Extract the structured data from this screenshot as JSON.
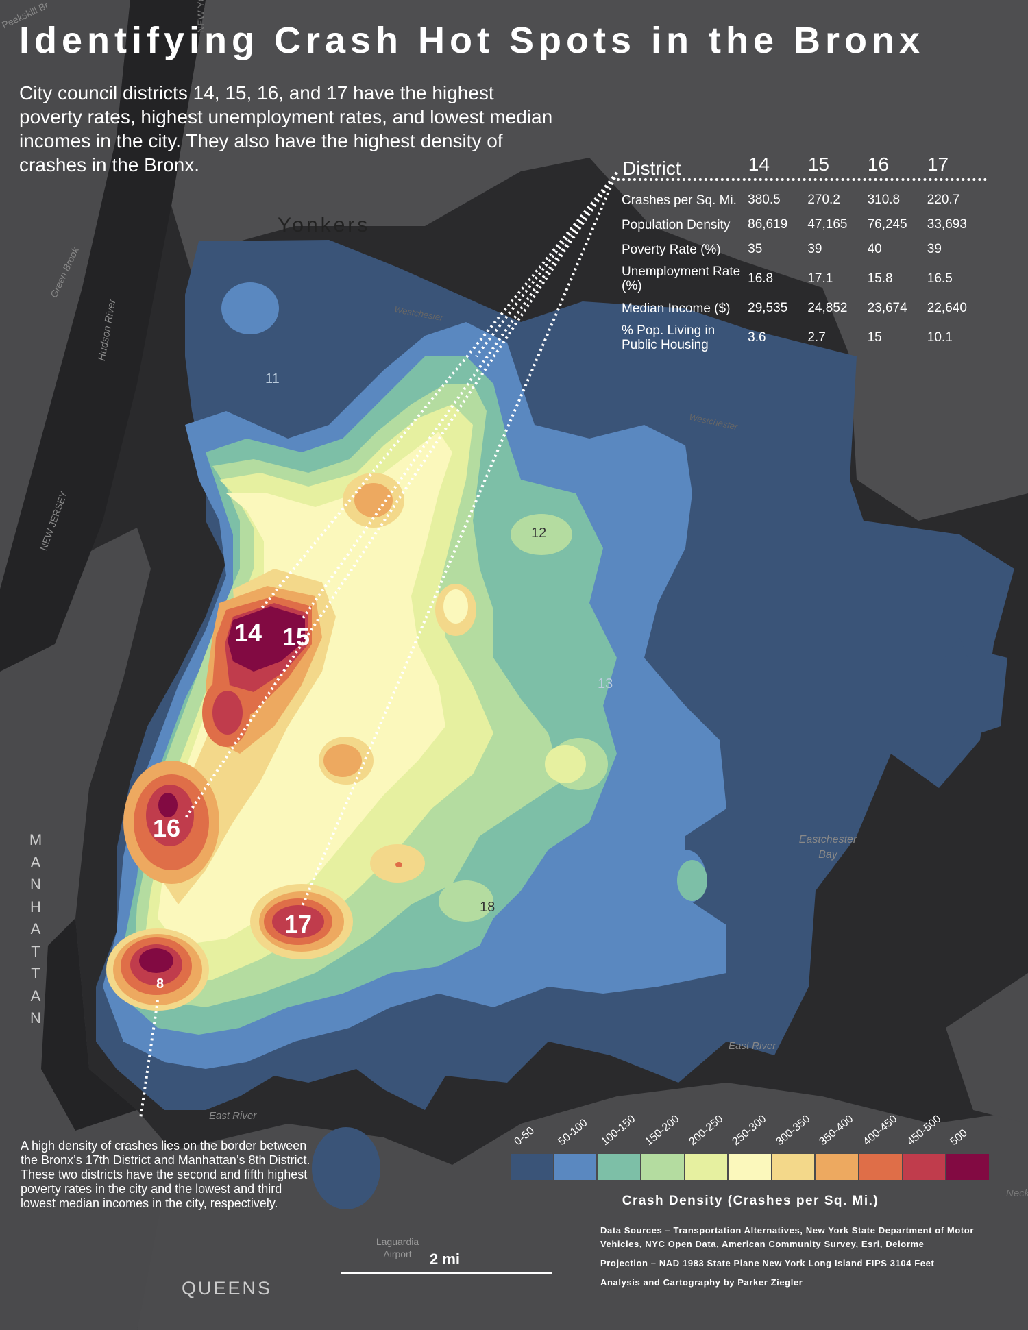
{
  "title": "Identifying Crash Hot Spots in the Bronx",
  "intro": "City council districts 14, 15, 16, and 17 have the highest poverty rates, highest unemployment rates, and lowest median incomes in the city. They also have the highest density of crashes in the Bronx.",
  "stats_table": {
    "header_label": "District",
    "districts": [
      "14",
      "15",
      "16",
      "17"
    ],
    "rows": [
      {
        "label": "Crashes per Sq. Mi.",
        "values": [
          "380.5",
          "270.2",
          "310.8",
          "220.7"
        ]
      },
      {
        "label": "Population Density",
        "values": [
          "86,619",
          "47,165",
          "76,245",
          "33,693"
        ]
      },
      {
        "label": "Poverty Rate (%)",
        "values": [
          "35",
          "39",
          "40",
          "39"
        ]
      },
      {
        "label": "Unemployment Rate (%)",
        "values": [
          "16.8",
          "17.1",
          "15.8",
          "16.5"
        ]
      },
      {
        "label": "Median Income ($)",
        "values": [
          "29,535",
          "24,852",
          "23,674",
          "22,640"
        ]
      },
      {
        "label": "% Pop. Living in Public Housing",
        "values": [
          "3.6",
          "2.7",
          "15",
          "10.1"
        ]
      }
    ]
  },
  "note": "A high density of crashes lies on the border between the Bronx’s 17th District and Manhattan’s 8th District. These two districts have the second and fifth highest poverty rates in the city and the lowest and third lowest median incomes in the city, respectively.",
  "map_labels": {
    "yonkers": "Yonkers",
    "manhattan": "MANHATTAN",
    "queens": "QUEENS",
    "new_jersey": "NEW JERSEY",
    "hudson_river": "Hudson River",
    "green_brook": "Green Brook",
    "eastchester_bay": "Eastchester Bay",
    "east_river_1": "East River",
    "east_river_2": "East River",
    "laguardia": "Laguardia Airport",
    "westchester_1": "Westchester",
    "westchester_2": "Westchester",
    "peekskill": "Peekskill Br",
    "new_york": "NEW YORK",
    "neck": "Neck"
  },
  "district_labels": {
    "d11": "11",
    "d12": "12",
    "d13": "13",
    "d14": "14",
    "d15": "15",
    "d16": "16",
    "d17": "17",
    "d18": "18",
    "d8": "8"
  },
  "legend": {
    "title": "Crash Density (Crashes per Sq. Mi.)",
    "classes": [
      {
        "label": "0-50",
        "color": "#3a5478"
      },
      {
        "label": "50-100",
        "color": "#5a88c0"
      },
      {
        "label": "100-150",
        "color": "#7dbfa7"
      },
      {
        "label": "150-200",
        "color": "#b4dca0"
      },
      {
        "label": "200-250",
        "color": "#e6f0a0"
      },
      {
        "label": "250-300",
        "color": "#fbf8bc"
      },
      {
        "label": "300-350",
        "color": "#f3d88a"
      },
      {
        "label": "350-400",
        "color": "#eda960"
      },
      {
        "label": "400-450",
        "color": "#df6e48"
      },
      {
        "label": "450-500",
        "color": "#c03c4c"
      },
      {
        "label": "500",
        "color": "#820a42"
      }
    ]
  },
  "scale": {
    "label": "2 mi"
  },
  "sources": [
    "Data Sources – Transportation Alternatives, New York State Department of Motor Vehicles, NYC Open Data, American Community Survey, Esri, Delorme",
    "Projection – NAD 1983 State Plane New York Long Island FIPS 3104 Feet",
    "Analysis and Cartography by Parker Ziegler"
  ]
}
